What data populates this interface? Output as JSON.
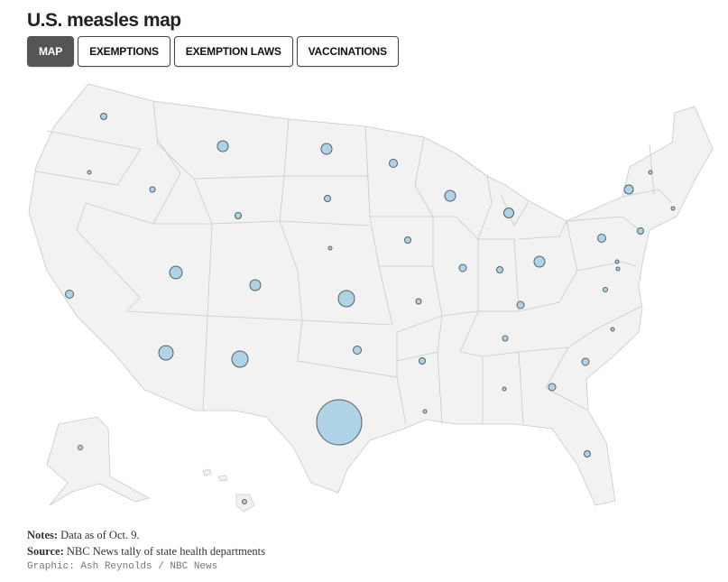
{
  "title": "U.S. measles map",
  "tabs": [
    {
      "label": "MAP",
      "active": true
    },
    {
      "label": "EXEMPTIONS",
      "active": false
    },
    {
      "label": "EXEMPTION LAWS",
      "active": false
    },
    {
      "label": "VACCINATIONS",
      "active": false
    }
  ],
  "notes": {
    "notes_label": "Notes:",
    "notes_text": "Data as of Oct. 9.",
    "source_label": "Source:",
    "source_text": "NBC News tally of state health departments",
    "credit": "Graphic: Ash Reynolds / NBC News"
  },
  "colors": {
    "bubble_fill": "#aed3e6",
    "bubble_stroke": "#555e66",
    "land": "#f2f2f2",
    "border": "#c8c8c8"
  }
}
